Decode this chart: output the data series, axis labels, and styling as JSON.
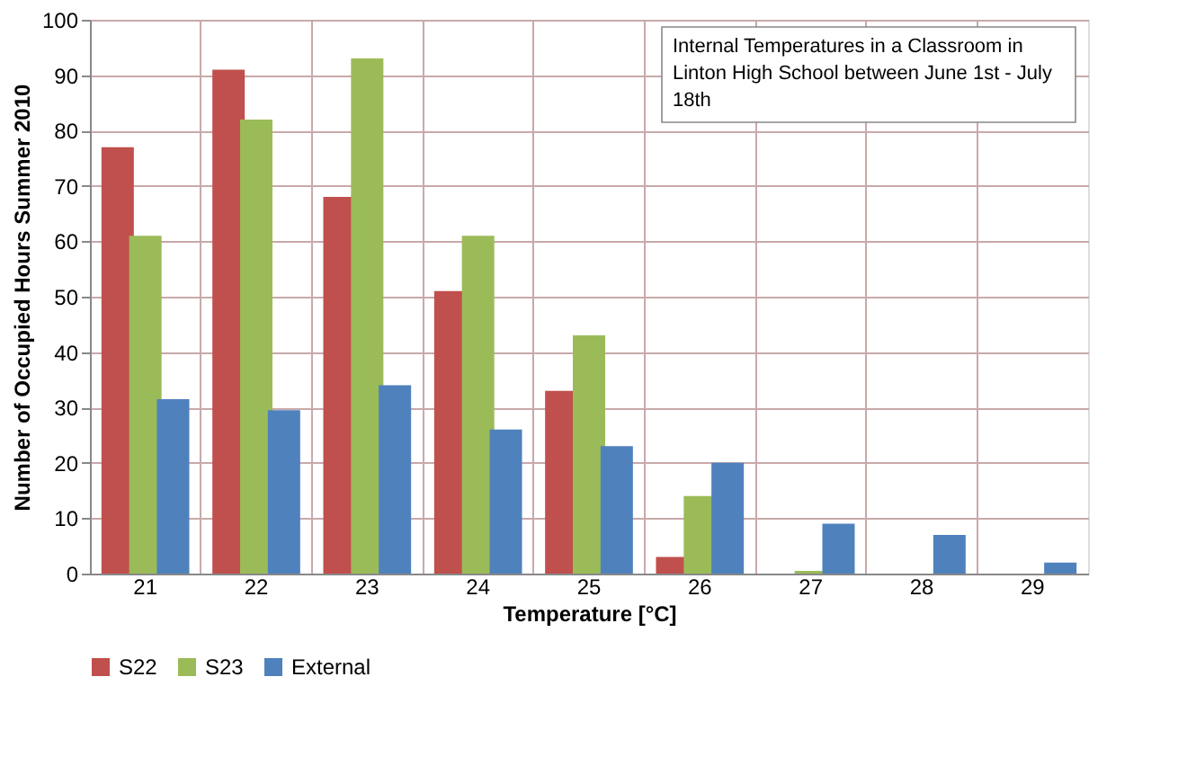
{
  "chart_data": {
    "type": "bar",
    "xlabel": "Temperature [°C]",
    "ylabel": "Number of Occupied Hours Summer 2010",
    "categories": [
      "21",
      "22",
      "23",
      "24",
      "25",
      "26",
      "27",
      "28",
      "29"
    ],
    "series": [
      {
        "name": "S22",
        "color": "#c0504d",
        "values": [
          77,
          91,
          68,
          51,
          33,
          3,
          0,
          0,
          0
        ]
      },
      {
        "name": "S23",
        "color": "#9bbb59",
        "values": [
          61,
          82,
          93,
          61,
          43,
          14,
          0.5,
          0,
          0
        ]
      },
      {
        "name": "External",
        "color": "#4f81bd",
        "values": [
          31.5,
          29.5,
          34,
          26,
          23,
          20,
          9,
          7,
          2
        ]
      }
    ],
    "ylim": [
      0,
      100
    ],
    "yticks": [
      0,
      10,
      20,
      30,
      40,
      50,
      60,
      70,
      80,
      90,
      100
    ],
    "grid": true,
    "legend": "bottom",
    "annotations": [
      "Internal Temperatures in a Classroom in Linton High School between June 1st - July 18th"
    ]
  }
}
